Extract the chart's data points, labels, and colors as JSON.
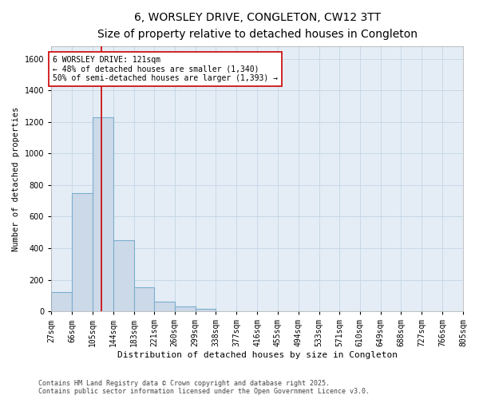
{
  "title1": "6, WORSLEY DRIVE, CONGLETON, CW12 3TT",
  "title2": "Size of property relative to detached houses in Congleton",
  "xlabel": "Distribution of detached houses by size in Congleton",
  "ylabel": "Number of detached properties",
  "bin_edges": [
    27,
    66,
    105,
    144,
    183,
    221,
    260,
    299,
    338,
    377,
    416,
    455,
    494,
    533,
    571,
    610,
    649,
    688,
    727,
    766,
    805
  ],
  "bar_heights": [
    120,
    750,
    1230,
    450,
    150,
    60,
    30,
    15,
    0,
    0,
    0,
    0,
    0,
    0,
    0,
    0,
    0,
    0,
    0,
    0
  ],
  "bar_color": "#ccd9e8",
  "bar_edge_color": "#7aaed0",
  "bar_edge_width": 0.8,
  "red_line_x": 121,
  "red_line_color": "#cc0000",
  "ylim": [
    0,
    1680
  ],
  "yticks": [
    0,
    200,
    400,
    600,
    800,
    1000,
    1200,
    1400,
    1600
  ],
  "annotation_line1": "6 WORSLEY DRIVE: 121sqm",
  "annotation_line2": "← 48% of detached houses are smaller (1,340)",
  "annotation_line3": "50% of semi-detached houses are larger (1,393) →",
  "annotation_box_color": "#ffffff",
  "annotation_border_color": "#cc0000",
  "grid_color": "#c8d8e8",
  "bg_color": "#e4edf5",
  "footer1": "Contains HM Land Registry data © Crown copyright and database right 2025.",
  "footer2": "Contains public sector information licensed under the Open Government Licence v3.0.",
  "title1_fontsize": 10,
  "title2_fontsize": 8.5,
  "xlabel_fontsize": 8,
  "ylabel_fontsize": 7.5,
  "tick_fontsize": 7,
  "annotation_fontsize": 7,
  "footer_fontsize": 6
}
